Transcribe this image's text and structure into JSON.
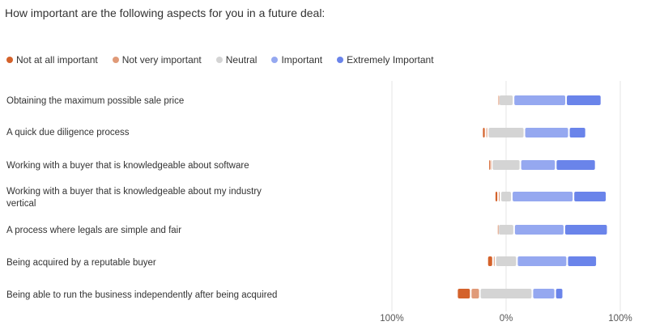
{
  "title": "How important are the following aspects for you in a future deal:",
  "colors": {
    "not_at_all": "#d4622b",
    "not_very": "#e09a78",
    "neutral": "#d4d4d4",
    "important": "#95a8f0",
    "extremely": "#6a84ea",
    "gridline": "#e6e6e6"
  },
  "legend": [
    {
      "label": "Not at all important",
      "color": "#d4622b"
    },
    {
      "label": "Not very important",
      "color": "#e09a78"
    },
    {
      "label": "Neutral",
      "color": "#d4d4d4"
    },
    {
      "label": "Important",
      "color": "#95a8f0"
    },
    {
      "label": "Extremely Important",
      "color": "#6a84ea"
    }
  ],
  "chart_data": {
    "type": "bar",
    "orientation": "horizontal-diverging-stacked",
    "title": "How important are the following aspects for you in a future deal:",
    "xlim": [
      -100,
      100
    ],
    "x_ticks": [
      "100%",
      "0%",
      "100%"
    ],
    "legend_position": "top",
    "categories": [
      "Obtaining the maximum possible sale price",
      "A quick due diligence process",
      "Working with a buyer that is knowledgeable about software",
      "Working with a buyer that is knowledgeable about my industry vertical",
      "A process where legals are simple and fair",
      "Being acquired by a reputable buyer",
      "Being able to run the business independently after being acquired"
    ],
    "series": [
      {
        "name": "Not at all important",
        "values": [
          0,
          3,
          1,
          3,
          0,
          5,
          12
        ]
      },
      {
        "name": "Not very important",
        "values": [
          1,
          2,
          2,
          2,
          1,
          2,
          8
        ]
      },
      {
        "name": "Neutral",
        "values": [
          13,
          32,
          25,
          10,
          14,
          19,
          46
        ]
      },
      {
        "name": "Important",
        "values": [
          46,
          39,
          31,
          54,
          44,
          44,
          20
        ]
      },
      {
        "name": "Extremely Important",
        "values": [
          31,
          15,
          35,
          29,
          38,
          26,
          7
        ]
      }
    ]
  }
}
